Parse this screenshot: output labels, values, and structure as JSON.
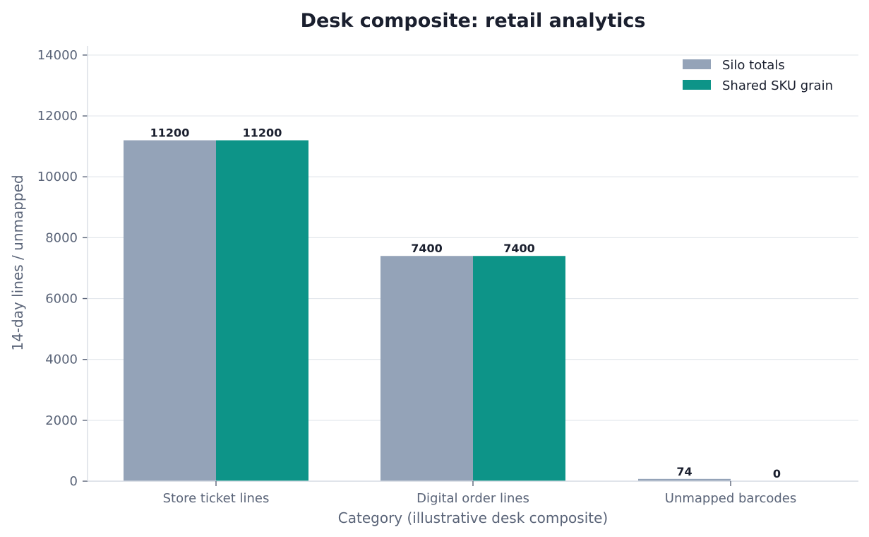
{
  "chart_data": {
    "type": "bar",
    "title": "Desk composite: retail analytics",
    "xlabel": "Category (illustrative desk composite)",
    "ylabel": "14-day lines / unmapped",
    "categories": [
      "Store ticket lines",
      "Digital order lines",
      "Unmapped barcodes"
    ],
    "series": [
      {
        "name": "Silo totals",
        "values": [
          11200,
          7400,
          74
        ],
        "color": "#94a3b8"
      },
      {
        "name": "Shared SKU grain",
        "values": [
          11200,
          7400,
          0
        ],
        "color": "#0d9488"
      }
    ],
    "ylim": [
      0,
      14300
    ],
    "yticks": [
      0,
      2000,
      4000,
      6000,
      8000,
      10000,
      12000,
      14000
    ],
    "grid": true,
    "legend_position": "top-right"
  }
}
